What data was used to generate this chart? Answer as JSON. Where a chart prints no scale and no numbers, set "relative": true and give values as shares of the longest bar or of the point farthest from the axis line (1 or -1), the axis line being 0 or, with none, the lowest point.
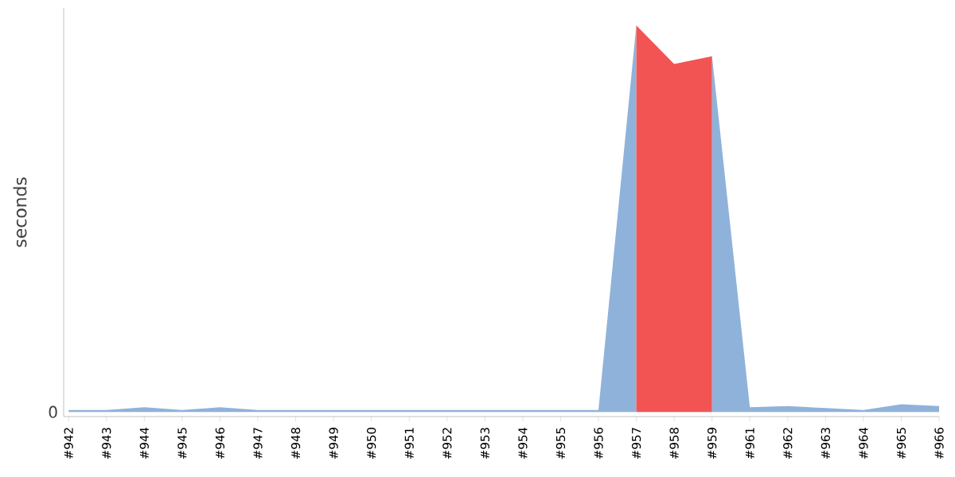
{
  "chart_data": {
    "type": "area",
    "ylabel": "seconds",
    "relative": true,
    "categories": [
      "#942",
      "#943",
      "#944",
      "#945",
      "#946",
      "#947",
      "#948",
      "#949",
      "#950",
      "#951",
      "#952",
      "#953",
      "#954",
      "#955",
      "#956",
      "#957",
      "#958",
      "#959",
      "#961",
      "#962",
      "#963",
      "#964",
      "#965",
      "#966"
    ],
    "series": [
      {
        "color": "#8fb2da",
        "values": [
          0.005,
          0.005,
          0.012,
          0.005,
          0.012,
          0.005,
          0.005,
          0.005,
          0.005,
          0.005,
          0.005,
          0.005,
          0.005,
          0.005,
          0.005,
          1,
          null,
          0.92,
          0.012,
          0.015,
          0.01,
          0.005,
          0.02,
          0.015
        ]
      },
      {
        "color": "#f25454",
        "values": [
          null,
          null,
          null,
          null,
          null,
          null,
          null,
          null,
          null,
          null,
          null,
          null,
          null,
          null,
          null,
          1,
          0.9,
          0.92,
          null,
          null,
          null,
          null,
          null,
          null
        ]
      }
    ],
    "annotations": [
      "0"
    ]
  }
}
